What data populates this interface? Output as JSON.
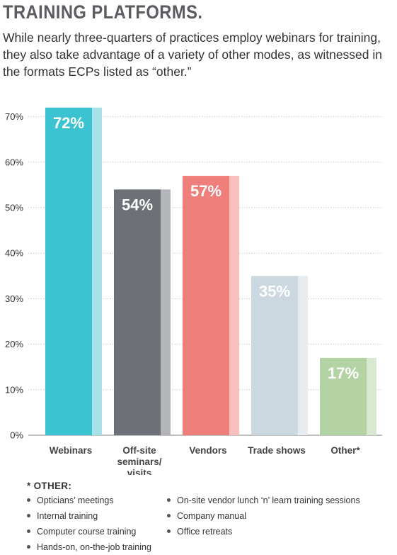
{
  "title": "TRAINING PLATFORMS.",
  "subtitle": "While nearly three-quarters of practices employ webinars for training, they also take advantage of a variety of other modes, as witnessed in the formats ECPs listed as “other.”",
  "chart_data": {
    "type": "bar",
    "categories": [
      [
        "Webinars"
      ],
      [
        "Off-site",
        "seminars/",
        "visits"
      ],
      [
        "Vendors"
      ],
      [
        "Trade shows"
      ],
      [
        "Other*"
      ]
    ],
    "values": [
      72,
      54,
      57,
      35,
      17
    ],
    "value_labels": [
      "72%",
      "54%",
      "57%",
      "35%",
      "17%"
    ],
    "bar_colors": [
      "#3cc3d2",
      "#6d7177",
      "#ef7f7b",
      "#cbd8df",
      "#b4d3a4"
    ],
    "bar_shadow_colors": [
      "#a8e1e8",
      "#b3b5b9",
      "#f8bfbc",
      "#e6ecef",
      "#d9e9d1"
    ],
    "value_label_colors": [
      "#ffffff",
      "#ffffff",
      "#ffffff",
      "#ffffff",
      "#ffffff"
    ],
    "yticks": [
      "0%",
      "10%",
      "20%",
      "30%",
      "40%",
      "50%",
      "60%",
      "70%"
    ],
    "ylim": [
      0,
      73
    ],
    "grid": true
  },
  "other": {
    "heading": "* OTHER:",
    "column1": [
      "Opticians’ meetings",
      "Internal training",
      "Computer course training",
      "Hands-on, on-the-job training"
    ],
    "column2": [
      "On-site vendor lunch ‘n’ learn training sessions",
      "Company manual",
      "Office retreats"
    ]
  }
}
